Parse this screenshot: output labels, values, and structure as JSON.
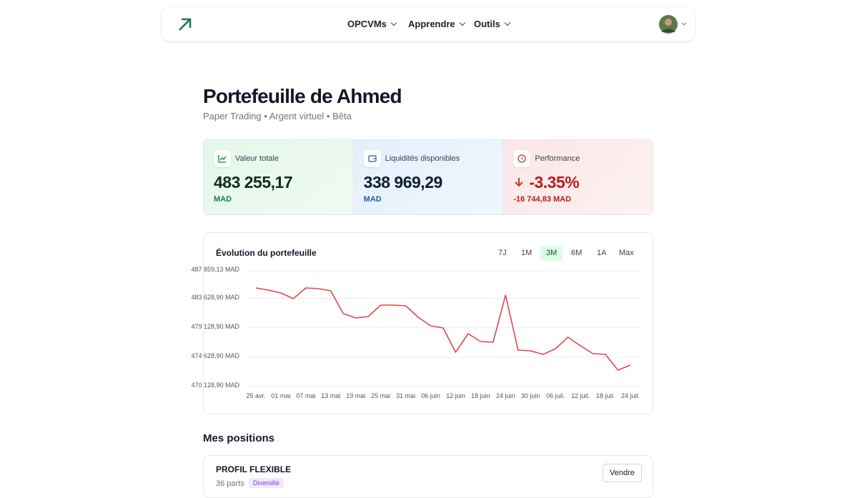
{
  "nav": {
    "items": [
      "OPCVMs",
      "Apprendre",
      "Outils"
    ]
  },
  "header": {
    "title": "Portefeuille de Ahmed",
    "subtitle": "Paper Trading • Argent virtuel • Bêta"
  },
  "stats": [
    {
      "label": "Valeur totale",
      "value": "483 255,17",
      "unit": "MAD"
    },
    {
      "label": "Liquidités disponibles",
      "value": "338 969,29",
      "unit": "MAD"
    },
    {
      "label": "Performance",
      "value": "-3.35%",
      "detail": "-16 744,83 MAD"
    }
  ],
  "chart_data": {
    "type": "line",
    "title": "Évolution du portefeuille",
    "ranges": [
      "7J",
      "1M",
      "3M",
      "6M",
      "1A",
      "Max"
    ],
    "selected_range": "3M",
    "categories": [
      "25 avr.",
      null,
      "01 mai",
      null,
      "07 mai",
      null,
      "13 mai",
      null,
      "19 mai",
      null,
      "25 mai",
      null,
      "31 mai",
      null,
      "06 juin",
      null,
      "12 juin",
      null,
      "18 juin",
      null,
      "24 juin",
      null,
      "30 juin",
      null,
      "06 juil.",
      null,
      "12 juil.",
      null,
      "18 juil.",
      null,
      "24 juil."
    ],
    "values": [
      485233,
      484905,
      484467,
      483591,
      485233,
      485124,
      484795,
      481293,
      480636,
      480855,
      482606,
      482606,
      482497,
      480746,
      479432,
      479104,
      475383,
      478228,
      477024,
      476915,
      484139,
      475711,
      475602,
      475054,
      475930,
      477681,
      476368,
      475164,
      475054,
      472646,
      473413
    ],
    "color": "#e0474c",
    "ylim": [
      470128.9,
      487859.13
    ],
    "yticks": [
      {
        "value": 470128.9,
        "label": "470 128,90 MAD"
      },
      {
        "value": 474628.9,
        "label": "474 628,90 MAD"
      },
      {
        "value": 479128.9,
        "label": "479 128,90 MAD"
      },
      {
        "value": 483628.9,
        "label": "483 628,90 MAD"
      },
      {
        "value": 487859.13,
        "label": "487 859,13 MAD"
      }
    ],
    "grid": true
  },
  "positions": {
    "title": "Mes positions",
    "items": [
      {
        "name": "PROFIL FLEXIBLE",
        "shares": "36 parts",
        "tag": "Diversifié",
        "action": "Vendre"
      }
    ]
  }
}
